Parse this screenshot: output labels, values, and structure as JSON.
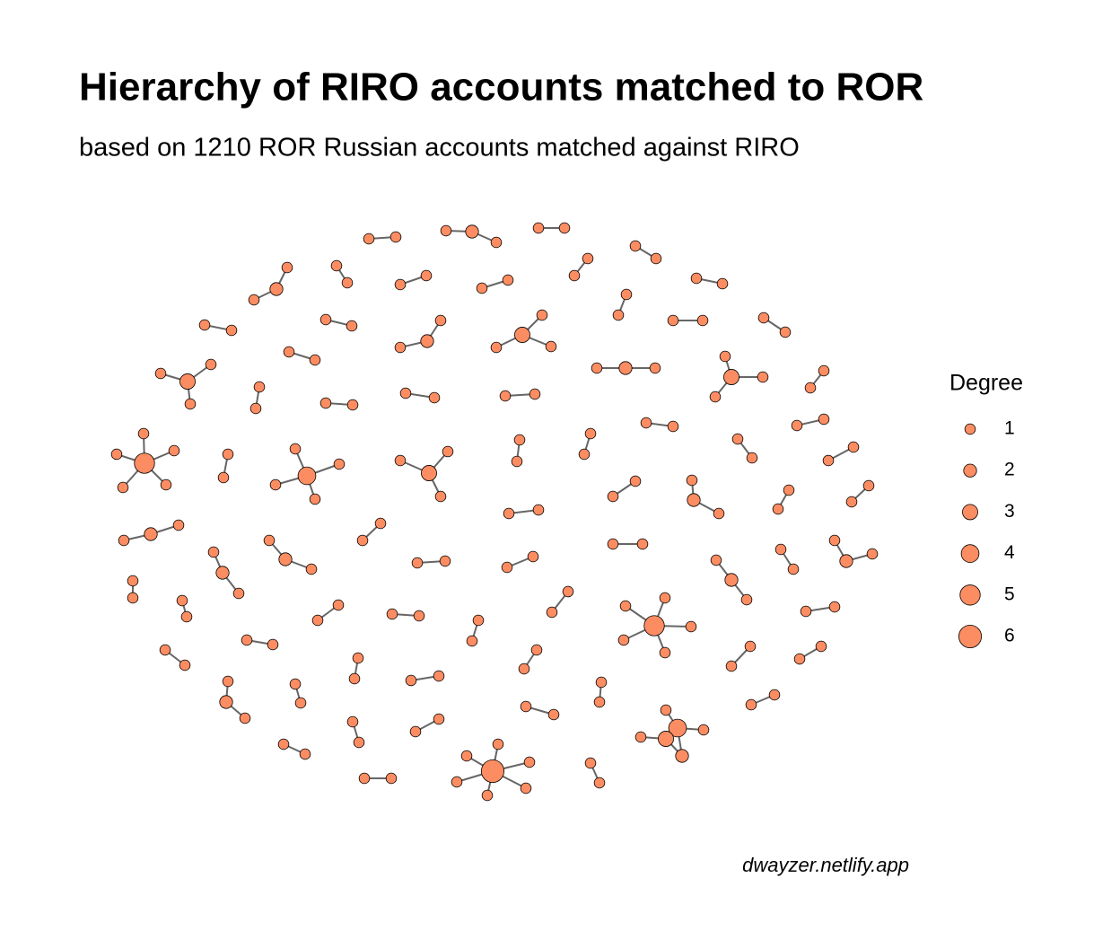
{
  "chart_data": {
    "type": "network",
    "title": "Hierarchy of RIRO accounts matched to ROR",
    "subtitle": "based on 1210 ROR Russian accounts matched against RIRO",
    "legend_title": "Degree",
    "legend_values": [
      1,
      2,
      3,
      4,
      5,
      6
    ],
    "color": "#fc8d62",
    "caption": "dwayzer.netlify.app"
  }
}
